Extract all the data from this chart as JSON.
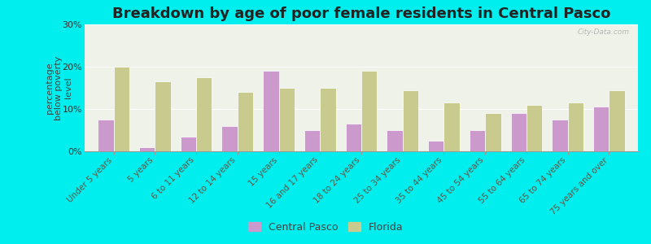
{
  "title": "Breakdown by age of poor female residents in Central Pasco",
  "ylabel": "percentage\nbelow poverty\nlevel",
  "categories": [
    "Under 5 years",
    "5 years",
    "6 to 11 years",
    "12 to 14 years",
    "15 years",
    "16 and 17 years",
    "18 to 24 years",
    "25 to 34 years",
    "35 to 44 years",
    "45 to 54 years",
    "55 to 64 years",
    "65 to 74 years",
    "75 years and over"
  ],
  "central_pasco": [
    7.5,
    1.0,
    3.5,
    6.0,
    19.0,
    5.0,
    6.5,
    5.0,
    2.5,
    5.0,
    9.0,
    7.5,
    10.5
  ],
  "florida": [
    20.0,
    16.5,
    17.5,
    14.0,
    15.0,
    15.0,
    19.0,
    14.5,
    11.5,
    9.0,
    11.0,
    11.5,
    14.5
  ],
  "central_pasco_color": "#cc99cc",
  "florida_color": "#c8ca8e",
  "bg_color": "#00eeee",
  "plot_bg_color": "#eef2e8",
  "ylim": [
    0,
    30
  ],
  "yticks": [
    0,
    10,
    20,
    30
  ],
  "ytick_labels": [
    "0%",
    "10%",
    "20%",
    "30%"
  ],
  "bar_width": 0.38,
  "title_fontsize": 13,
  "tick_fontsize": 7.5,
  "ylabel_fontsize": 8,
  "legend_fontsize": 9,
  "watermark": "City-Data.com"
}
